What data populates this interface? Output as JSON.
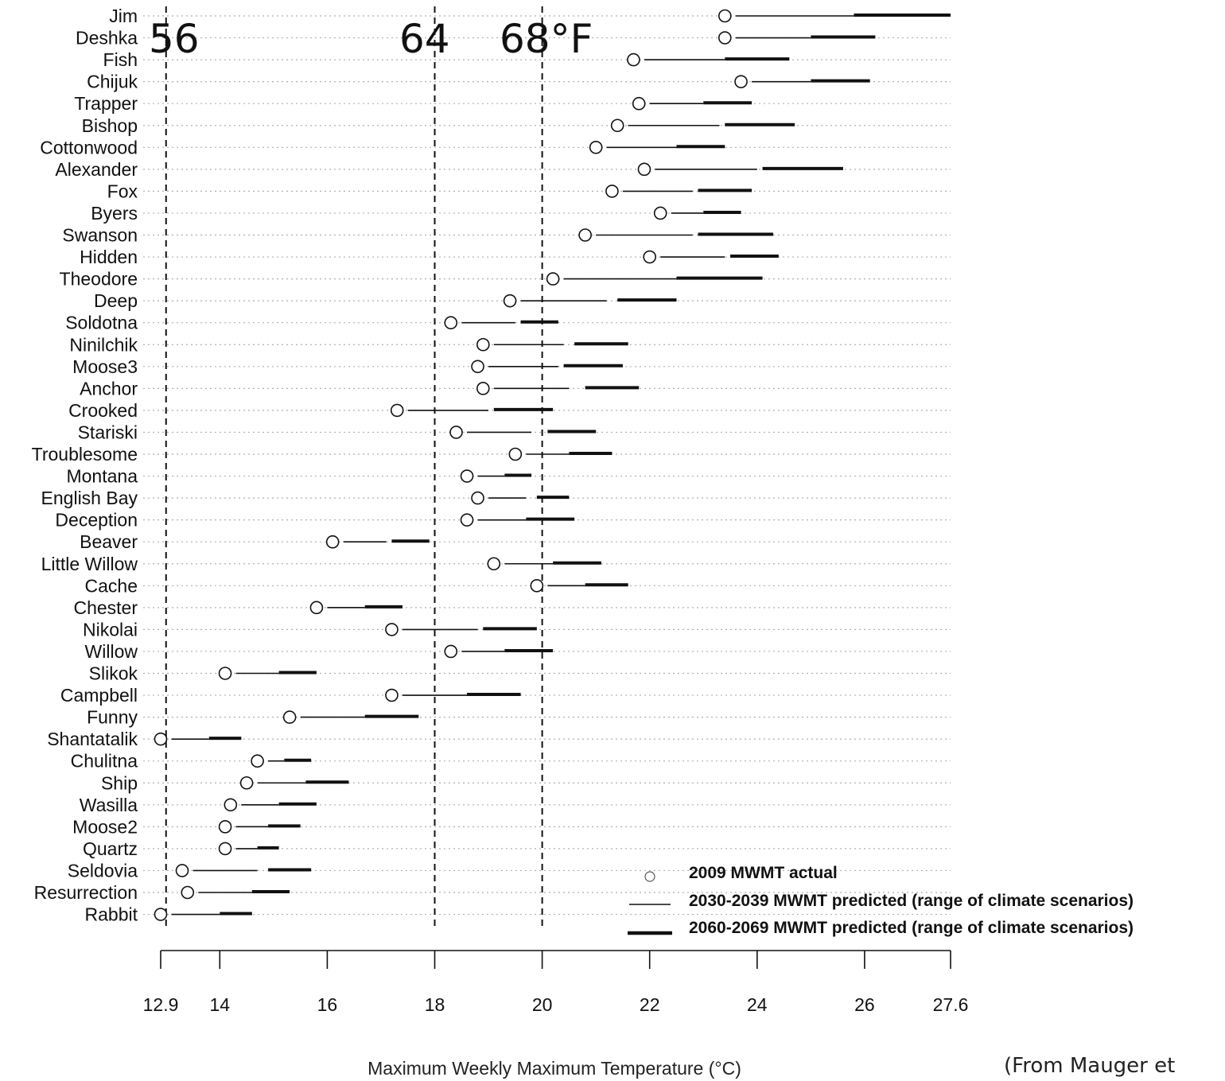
{
  "chart_data": {
    "type": "range-dot",
    "xlabel": "Maximum Weekly Maximum Temperature (°C)",
    "xlim": [
      12.9,
      27.6
    ],
    "xticks": [
      12.9,
      14,
      16,
      18,
      20,
      22,
      24,
      26,
      27.6
    ],
    "xtick_labels": [
      "12.9",
      "14",
      "16",
      "18",
      "20",
      "22",
      "24",
      "26",
      "27.6"
    ],
    "reference_lines": [
      {
        "x": 13.0,
        "label": "56"
      },
      {
        "x": 18.0,
        "label": "64"
      },
      {
        "x": 20.0,
        "label": "68°F"
      }
    ],
    "legend": {
      "position": "bottom-right",
      "entries": [
        {
          "key": "actual",
          "label": "2009 MWMT actual"
        },
        {
          "key": "mid",
          "label": "2030-2039 MWMT predicted (range of climate scenarios)"
        },
        {
          "key": "late",
          "label": "2060-2069 MWMT predicted (range of climate scenarios)"
        }
      ]
    },
    "streams": [
      {
        "name": "Jim",
        "actual": 23.4,
        "mid": [
          23.6,
          25.8
        ],
        "late": [
          25.8,
          27.6
        ]
      },
      {
        "name": "Deshka",
        "actual": 23.4,
        "mid": [
          23.6,
          25.0
        ],
        "late": [
          25.0,
          26.2
        ]
      },
      {
        "name": "Fish",
        "actual": 21.7,
        "mid": [
          21.9,
          23.4
        ],
        "late": [
          23.4,
          24.6
        ]
      },
      {
        "name": "Chijuk",
        "actual": 23.7,
        "mid": [
          23.9,
          25.0
        ],
        "late": [
          25.0,
          26.1
        ]
      },
      {
        "name": "Trapper",
        "actual": 21.8,
        "mid": [
          22.0,
          23.0
        ],
        "late": [
          23.0,
          23.9
        ]
      },
      {
        "name": "Bishop",
        "actual": 21.4,
        "mid": [
          21.6,
          23.3
        ],
        "late": [
          23.4,
          24.7
        ]
      },
      {
        "name": "Cottonwood",
        "actual": 21.0,
        "mid": [
          21.2,
          22.5
        ],
        "late": [
          22.5,
          23.4
        ]
      },
      {
        "name": "Alexander",
        "actual": 21.9,
        "mid": [
          22.1,
          24.0
        ],
        "late": [
          24.1,
          25.6
        ]
      },
      {
        "name": "Fox",
        "actual": 21.3,
        "mid": [
          21.5,
          22.8
        ],
        "late": [
          22.9,
          23.9
        ]
      },
      {
        "name": "Byers",
        "actual": 22.2,
        "mid": [
          22.4,
          23.0
        ],
        "late": [
          23.0,
          23.7
        ]
      },
      {
        "name": "Swanson",
        "actual": 20.8,
        "mid": [
          21.0,
          22.8
        ],
        "late": [
          22.9,
          24.3
        ]
      },
      {
        "name": "Hidden",
        "actual": 22.0,
        "mid": [
          22.2,
          23.4
        ],
        "late": [
          23.5,
          24.4
        ]
      },
      {
        "name": "Theodore",
        "actual": 20.2,
        "mid": [
          20.4,
          22.5
        ],
        "late": [
          22.5,
          24.1
        ]
      },
      {
        "name": "Deep",
        "actual": 19.4,
        "mid": [
          19.6,
          21.2
        ],
        "late": [
          21.4,
          22.5
        ]
      },
      {
        "name": "Soldotna",
        "actual": 18.3,
        "mid": [
          18.5,
          19.5
        ],
        "late": [
          19.6,
          20.3
        ]
      },
      {
        "name": "Ninilchik",
        "actual": 18.9,
        "mid": [
          19.1,
          20.4
        ],
        "late": [
          20.6,
          21.6
        ]
      },
      {
        "name": "Moose3",
        "actual": 18.8,
        "mid": [
          19.0,
          20.3
        ],
        "late": [
          20.4,
          21.5
        ]
      },
      {
        "name": "Anchor",
        "actual": 18.9,
        "mid": [
          19.1,
          20.5
        ],
        "late": [
          20.8,
          21.8
        ]
      },
      {
        "name": "Crooked",
        "actual": 17.3,
        "mid": [
          17.5,
          19.0
        ],
        "late": [
          19.1,
          20.2
        ]
      },
      {
        "name": "Stariski",
        "actual": 18.4,
        "mid": [
          18.6,
          19.8
        ],
        "late": [
          20.1,
          21.0
        ]
      },
      {
        "name": "Troublesome",
        "actual": 19.5,
        "mid": [
          19.7,
          20.5
        ],
        "late": [
          20.5,
          21.3
        ]
      },
      {
        "name": "Montana",
        "actual": 18.6,
        "mid": [
          18.8,
          19.3
        ],
        "late": [
          19.3,
          19.8
        ]
      },
      {
        "name": "English Bay",
        "actual": 18.8,
        "mid": [
          19.0,
          19.7
        ],
        "late": [
          19.9,
          20.5
        ]
      },
      {
        "name": "Deception",
        "actual": 18.6,
        "mid": [
          18.8,
          19.7
        ],
        "late": [
          19.7,
          20.6
        ]
      },
      {
        "name": "Beaver",
        "actual": 16.1,
        "mid": [
          16.3,
          17.1
        ],
        "late": [
          17.2,
          17.9
        ]
      },
      {
        "name": "Little Willow",
        "actual": 19.1,
        "mid": [
          19.3,
          20.2
        ],
        "late": [
          20.2,
          21.1
        ]
      },
      {
        "name": "Cache",
        "actual": 19.9,
        "mid": [
          20.1,
          20.8
        ],
        "late": [
          20.8,
          21.6
        ]
      },
      {
        "name": "Chester",
        "actual": 15.8,
        "mid": [
          16.0,
          16.7
        ],
        "late": [
          16.7,
          17.4
        ]
      },
      {
        "name": "Nikolai",
        "actual": 17.2,
        "mid": [
          17.4,
          18.8
        ],
        "late": [
          18.9,
          19.9
        ]
      },
      {
        "name": "Willow",
        "actual": 18.3,
        "mid": [
          18.5,
          19.3
        ],
        "late": [
          19.3,
          20.2
        ]
      },
      {
        "name": "Slikok",
        "actual": 14.1,
        "mid": [
          14.3,
          15.1
        ],
        "late": [
          15.1,
          15.8
        ]
      },
      {
        "name": "Campbell",
        "actual": 17.2,
        "mid": [
          17.4,
          18.6
        ],
        "late": [
          18.6,
          19.6
        ]
      },
      {
        "name": "Funny",
        "actual": 15.3,
        "mid": [
          15.5,
          16.7
        ],
        "late": [
          16.7,
          17.7
        ]
      },
      {
        "name": "Shantatalik",
        "actual": 12.9,
        "mid": [
          13.1,
          13.8
        ],
        "late": [
          13.8,
          14.4
        ]
      },
      {
        "name": "Chulitna",
        "actual": 14.7,
        "mid": [
          14.9,
          15.2
        ],
        "late": [
          15.2,
          15.7
        ]
      },
      {
        "name": "Ship",
        "actual": 14.5,
        "mid": [
          14.7,
          15.6
        ],
        "late": [
          15.6,
          16.4
        ]
      },
      {
        "name": "Wasilla",
        "actual": 14.2,
        "mid": [
          14.4,
          15.1
        ],
        "late": [
          15.1,
          15.8
        ]
      },
      {
        "name": "Moose2",
        "actual": 14.1,
        "mid": [
          14.3,
          14.9
        ],
        "late": [
          14.9,
          15.5
        ]
      },
      {
        "name": "Quartz",
        "actual": 14.1,
        "mid": [
          14.3,
          14.7
        ],
        "late": [
          14.7,
          15.1
        ]
      },
      {
        "name": "Seldovia",
        "actual": 13.3,
        "mid": [
          13.5,
          14.7
        ],
        "late": [
          14.9,
          15.7
        ]
      },
      {
        "name": "Resurrection",
        "actual": 13.4,
        "mid": [
          13.6,
          14.6
        ],
        "late": [
          14.6,
          15.3
        ]
      },
      {
        "name": "Rabbit",
        "actual": 12.9,
        "mid": [
          13.1,
          14.0
        ],
        "late": [
          14.0,
          14.6
        ]
      }
    ]
  },
  "source_note": "(From Mauger et"
}
